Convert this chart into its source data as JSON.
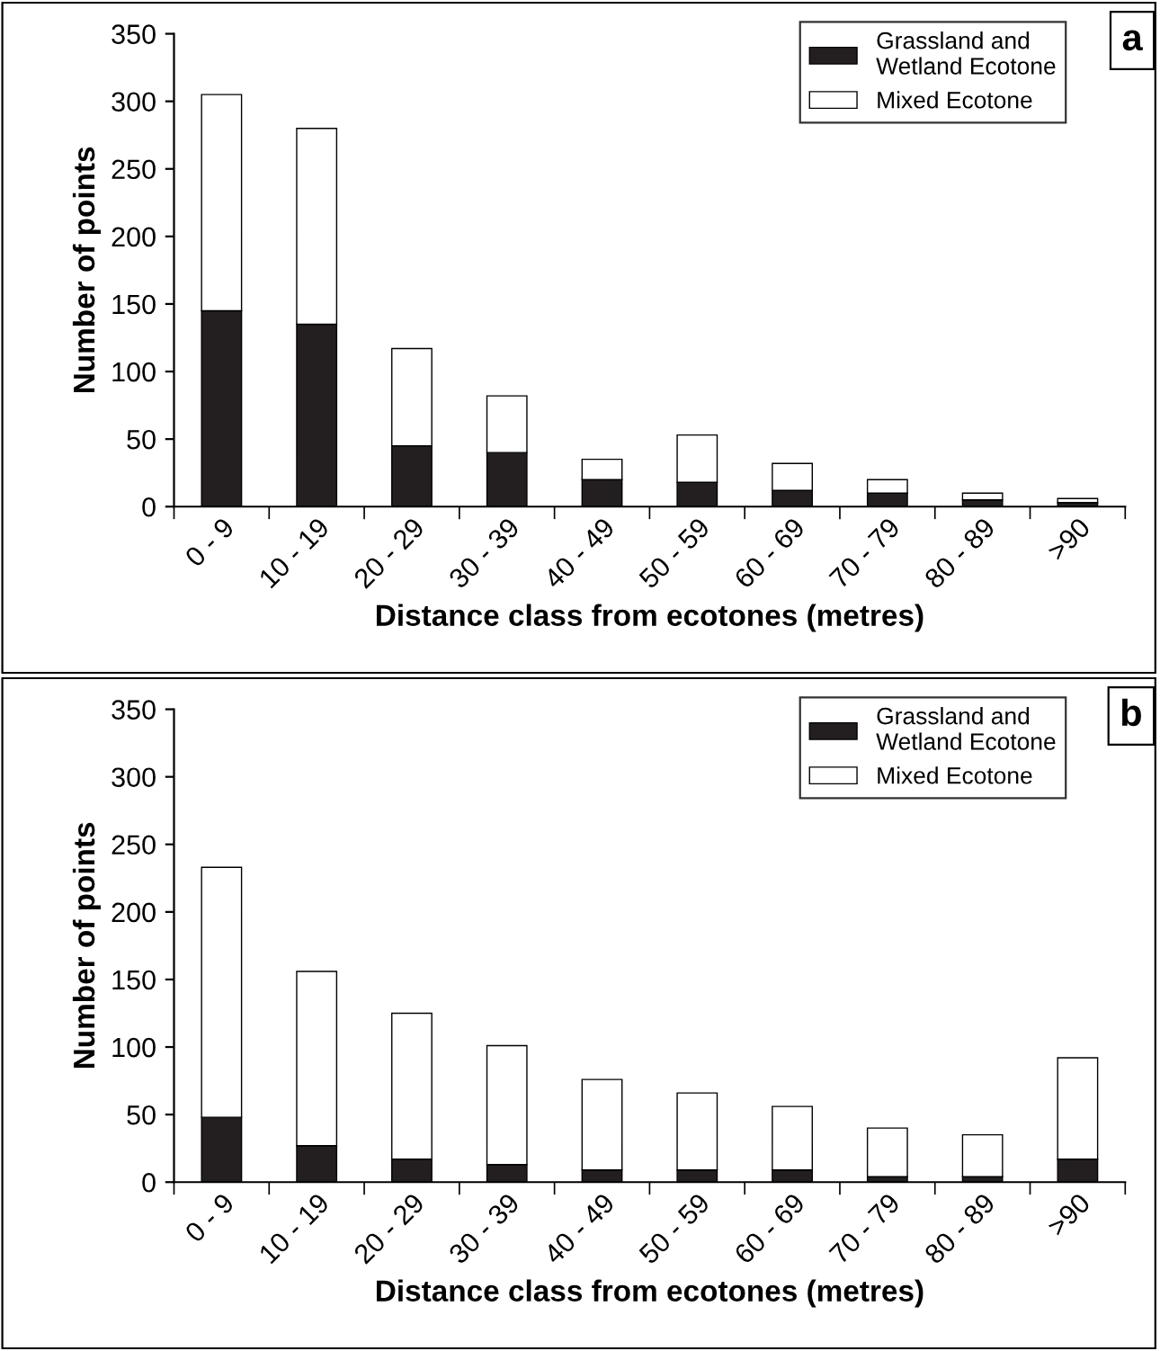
{
  "chart_data": [
    {
      "type": "bar",
      "stacked": true,
      "annotations": [
        "a"
      ],
      "xlabel": "Distance class from ecotones (metres)",
      "ylabel": "Number of points",
      "categories": [
        "0 - 9",
        "10 - 19",
        "20 - 29",
        "30 - 39",
        "40 - 49",
        "50 - 59",
        "60 - 69",
        "70 - 79",
        "80 - 89",
        ">90"
      ],
      "ylim": [
        0,
        350
      ],
      "yticks": [
        0,
        50,
        100,
        150,
        200,
        250,
        300,
        350
      ],
      "legend": "top right",
      "series": [
        {
          "name": "Grassland and\nWetland Ecotone",
          "color": "#231f20",
          "values": [
            145,
            135,
            45,
            40,
            20,
            18,
            12,
            10,
            5,
            3
          ]
        },
        {
          "name": "Mixed Ecotone",
          "color": "#ffffff",
          "values": [
            160,
            145,
            72,
            42,
            15,
            35,
            20,
            10,
            5,
            3
          ]
        }
      ]
    },
    {
      "type": "bar",
      "stacked": true,
      "annotations": [
        "b"
      ],
      "xlabel": "Distance class from ecotones (metres)",
      "ylabel": "Number of points",
      "categories": [
        "0 - 9",
        "10 - 19",
        "20 - 29",
        "30 - 39",
        "40 - 49",
        "50 - 59",
        "60 - 69",
        "70 - 79",
        "80 - 89",
        ">90"
      ],
      "ylim": [
        0,
        350
      ],
      "yticks": [
        0,
        50,
        100,
        150,
        200,
        250,
        300,
        350
      ],
      "legend": "top right",
      "series": [
        {
          "name": "Grassland and\nWetland Ecotone",
          "color": "#231f20",
          "values": [
            48,
            27,
            17,
            13,
            9,
            9,
            9,
            4,
            4,
            17
          ]
        },
        {
          "name": "Mixed Ecotone",
          "color": "#ffffff",
          "values": [
            185,
            129,
            108,
            88,
            67,
            57,
            47,
            36,
            31,
            75
          ]
        }
      ]
    }
  ]
}
